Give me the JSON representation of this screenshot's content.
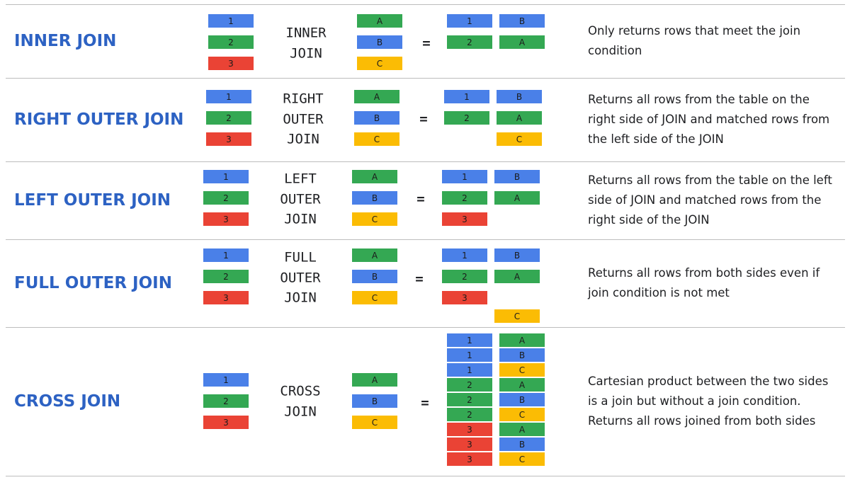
{
  "colors": {
    "row1": "#4a80e8",
    "row2": "#34a853",
    "row3": "#ea4335",
    "rowA": "#34a853",
    "rowB": "#4a80e8",
    "rowC": "#fbbc04",
    "title": "#2d62c3",
    "divider": "#bdbdbd"
  },
  "left_table": [
    "1",
    "2",
    "3"
  ],
  "right_table": [
    "A",
    "B",
    "C"
  ],
  "equals_sign": "=",
  "joins": [
    {
      "name": "INNER JOIN",
      "operator": [
        "INNER",
        "JOIN"
      ],
      "description": "Only returns rows that meet the join condition",
      "result": [
        [
          "1",
          "B"
        ],
        [
          "2",
          "A"
        ]
      ]
    },
    {
      "name": "RIGHT OUTER JOIN",
      "operator": [
        "RIGHT",
        "OUTER",
        "JOIN"
      ],
      "description": "Returns all rows from the table on the right side of JOIN and matched rows from the left side of the JOIN",
      "result": [
        [
          "1",
          "B"
        ],
        [
          "2",
          "A"
        ],
        [
          null,
          "C"
        ]
      ]
    },
    {
      "name": "LEFT OUTER JOIN",
      "operator": [
        "LEFT",
        "OUTER",
        "JOIN"
      ],
      "description": "Returns all rows from the table on the left side of JOIN and matched rows from the right side of the JOIN",
      "result": [
        [
          "1",
          "B"
        ],
        [
          "2",
          "A"
        ],
        [
          "3",
          null
        ]
      ]
    },
    {
      "name": "FULL OUTER JOIN",
      "operator": [
        "FULL",
        "OUTER",
        "JOIN"
      ],
      "description": "Returns all rows from both sides even if join condition is not met",
      "result": [
        [
          "1",
          "B"
        ],
        [
          "2",
          "A"
        ],
        [
          "3",
          null
        ],
        [
          null,
          "C"
        ]
      ]
    },
    {
      "name": "CROSS JOIN",
      "operator": [
        "CROSS",
        "JOIN"
      ],
      "description": "Cartesian product between the two sides is a join but without a join condition. Returns all rows joined from both sides",
      "result": [
        [
          "1",
          "A"
        ],
        [
          "1",
          "B"
        ],
        [
          "1",
          "C"
        ],
        [
          "2",
          "A"
        ],
        [
          "2",
          "B"
        ],
        [
          "2",
          "C"
        ],
        [
          "3",
          "A"
        ],
        [
          "3",
          "B"
        ],
        [
          "3",
          "C"
        ]
      ]
    }
  ]
}
